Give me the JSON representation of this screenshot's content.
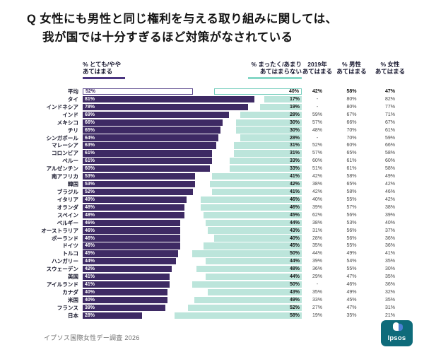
{
  "title": {
    "q": "Q",
    "line1": "女性にも男性と同じ権利を与える取り組みに関しては、",
    "line2": "我が国では十分すぎるほど対策がなされている"
  },
  "columns": {
    "agree": {
      "line1": "% とても/やや",
      "line2": "あてはまる"
    },
    "disagree": {
      "line1": "% まったく/あまり",
      "line2": "あてはまらない"
    },
    "y2019": {
      "line1": "2019年",
      "line2": "あてはまる"
    },
    "male": {
      "line1": "% 男性",
      "line2": "あてはまる"
    },
    "female": {
      "line1": "% 女性",
      "line2": "あてはまる"
    }
  },
  "footer": {
    "source": "イプソス国際女性デー調査  2026",
    "logo_text": "Ipsos"
  },
  "colors": {
    "agree_bar": "#3E2A64",
    "disagree_bar": "#BCE5DB",
    "agree_underline": "#4B3580",
    "disagree_underline": "#86D7C6",
    "logo_bg": "#0E6B7A"
  },
  "chart_data": {
    "type": "bar",
    "orientation": "horizontal",
    "title": "Q 女性にも男性と同じ権利を与える取り組みに関しては、我が国では十分すぎるほど対策がなされている",
    "value_unit": "%",
    "xlim": [
      0,
      100
    ],
    "series": [
      {
        "name": "% とても/やや あてはまる",
        "color": "#3E2A64",
        "anchor": "left"
      },
      {
        "name": "% まったく/あまり あてはまらない",
        "color": "#BCE5DB",
        "anchor": "right"
      }
    ],
    "rows": [
      {
        "label": "平均",
        "agree": 52,
        "disagree": 40,
        "y2019": "42%",
        "male": "58%",
        "female": "47%",
        "is_average": true
      },
      {
        "label": "タイ",
        "agree": 81,
        "disagree": 17,
        "y2019": "-",
        "male": "80%",
        "female": "82%"
      },
      {
        "label": "インドネシア",
        "agree": 78,
        "disagree": 19,
        "y2019": "-",
        "male": "80%",
        "female": "77%"
      },
      {
        "label": "インド",
        "agree": 69,
        "disagree": 28,
        "y2019": "59%",
        "male": "67%",
        "female": "71%"
      },
      {
        "label": "メキシコ",
        "agree": 66,
        "disagree": 30,
        "y2019": "57%",
        "male": "66%",
        "female": "67%"
      },
      {
        "label": "チリ",
        "agree": 65,
        "disagree": 30,
        "y2019": "48%",
        "male": "70%",
        "female": "61%"
      },
      {
        "label": "シンガポール",
        "agree": 64,
        "disagree": 28,
        "y2019": "-",
        "male": "70%",
        "female": "59%"
      },
      {
        "label": "マレーシア",
        "agree": 63,
        "disagree": 31,
        "y2019": "52%",
        "male": "60%",
        "female": "66%"
      },
      {
        "label": "コロンビア",
        "agree": 61,
        "disagree": 31,
        "y2019": "57%",
        "male": "65%",
        "female": "58%"
      },
      {
        "label": "ペルー",
        "agree": 61,
        "disagree": 33,
        "y2019": "60%",
        "male": "61%",
        "female": "60%"
      },
      {
        "label": "アルゼンチン",
        "agree": 60,
        "disagree": 33,
        "y2019": "51%",
        "male": "61%",
        "female": "58%"
      },
      {
        "label": "南アフリカ",
        "agree": 53,
        "disagree": 41,
        "y2019": "42%",
        "male": "58%",
        "female": "49%"
      },
      {
        "label": "韓国",
        "agree": 53,
        "disagree": 42,
        "y2019": "38%",
        "male": "65%",
        "female": "42%"
      },
      {
        "label": "ブラジル",
        "agree": 52,
        "disagree": 41,
        "y2019": "42%",
        "male": "58%",
        "female": "46%"
      },
      {
        "label": "イタリア",
        "agree": 49,
        "disagree": 46,
        "y2019": "40%",
        "male": "55%",
        "female": "42%"
      },
      {
        "label": "オランダ",
        "agree": 48,
        "disagree": 46,
        "y2019": "39%",
        "male": "57%",
        "female": "38%"
      },
      {
        "label": "スペイン",
        "agree": 48,
        "disagree": 45,
        "y2019": "62%",
        "male": "56%",
        "female": "39%"
      },
      {
        "label": "ベルギー",
        "agree": 46,
        "disagree": 44,
        "y2019": "38%",
        "male": "53%",
        "female": "40%"
      },
      {
        "label": "オーストラリア",
        "agree": 46,
        "disagree": 43,
        "y2019": "31%",
        "male": "56%",
        "female": "37%"
      },
      {
        "label": "ポーランド",
        "agree": 46,
        "disagree": 40,
        "y2019": "28%",
        "male": "56%",
        "female": "36%"
      },
      {
        "label": "ドイツ",
        "agree": 46,
        "disagree": 45,
        "y2019": "35%",
        "male": "55%",
        "female": "36%"
      },
      {
        "label": "トルコ",
        "agree": 45,
        "disagree": 50,
        "y2019": "44%",
        "male": "49%",
        "female": "41%"
      },
      {
        "label": "ハンガリー",
        "agree": 44,
        "disagree": 44,
        "y2019": "39%",
        "male": "54%",
        "female": "35%"
      },
      {
        "label": "スウェーデン",
        "agree": 42,
        "disagree": 48,
        "y2019": "36%",
        "male": "55%",
        "female": "30%"
      },
      {
        "label": "英国",
        "agree": 41,
        "disagree": 44,
        "y2019": "29%",
        "male": "47%",
        "female": "35%"
      },
      {
        "label": "アイルランド",
        "agree": 41,
        "disagree": 50,
        "y2019": "-",
        "male": "46%",
        "female": "36%"
      },
      {
        "label": "カナダ",
        "agree": 40,
        "disagree": 43,
        "y2019": "35%",
        "male": "49%",
        "female": "32%"
      },
      {
        "label": "米国",
        "agree": 40,
        "disagree": 49,
        "y2019": "33%",
        "male": "45%",
        "female": "35%"
      },
      {
        "label": "フランス",
        "agree": 39,
        "disagree": 52,
        "y2019": "27%",
        "male": "47%",
        "female": "31%"
      },
      {
        "label": "日本",
        "agree": 28,
        "disagree": 58,
        "y2019": "19%",
        "male": "35%",
        "female": "21%"
      }
    ]
  }
}
